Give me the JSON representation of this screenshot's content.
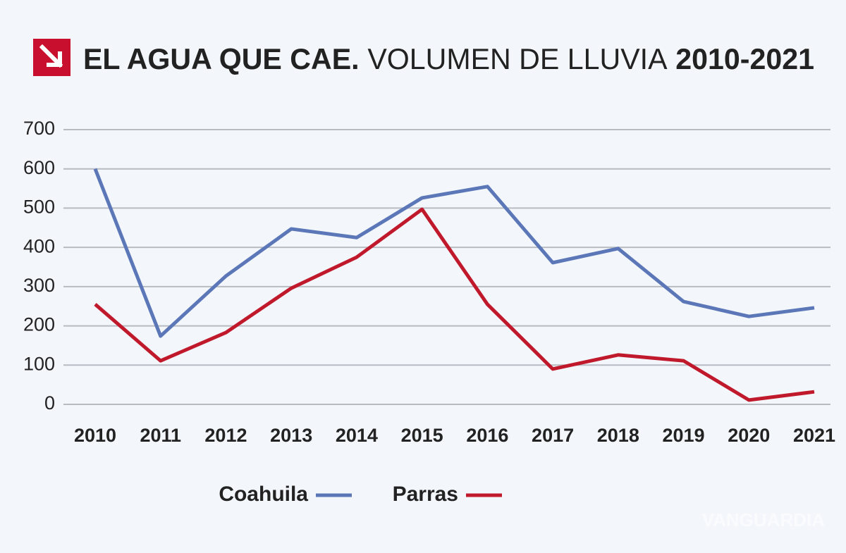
{
  "chart_data": {
    "type": "line",
    "title_parts": [
      {
        "text": "EL AGUA QUE CAE.",
        "bold": true
      },
      {
        "text": "VOLUMEN DE LLUVIA",
        "bold": false
      },
      {
        "text": "2010-2021",
        "bold": true
      }
    ],
    "watermark": "VANGUARDIA",
    "categories": [
      "2010",
      "2011",
      "2012",
      "2013",
      "2014",
      "2015",
      "2016",
      "2017",
      "2018",
      "2019",
      "2020",
      "2021"
    ],
    "series": [
      {
        "name": "Coahuila",
        "color": "#5b77b8",
        "values": [
          600,
          174,
          327,
          447,
          425,
          526,
          555,
          361,
          397,
          262,
          224,
          246
        ]
      },
      {
        "name": "Parras",
        "color": "#c0192b",
        "values": [
          255,
          111,
          183,
          296,
          375,
          497,
          255,
          90,
          126,
          111,
          11,
          32
        ]
      }
    ],
    "ylim": [
      0,
      700
    ],
    "yticks": [
      0,
      100,
      200,
      300,
      400,
      500,
      600,
      700
    ],
    "grid": true,
    "legend": "bottom"
  }
}
